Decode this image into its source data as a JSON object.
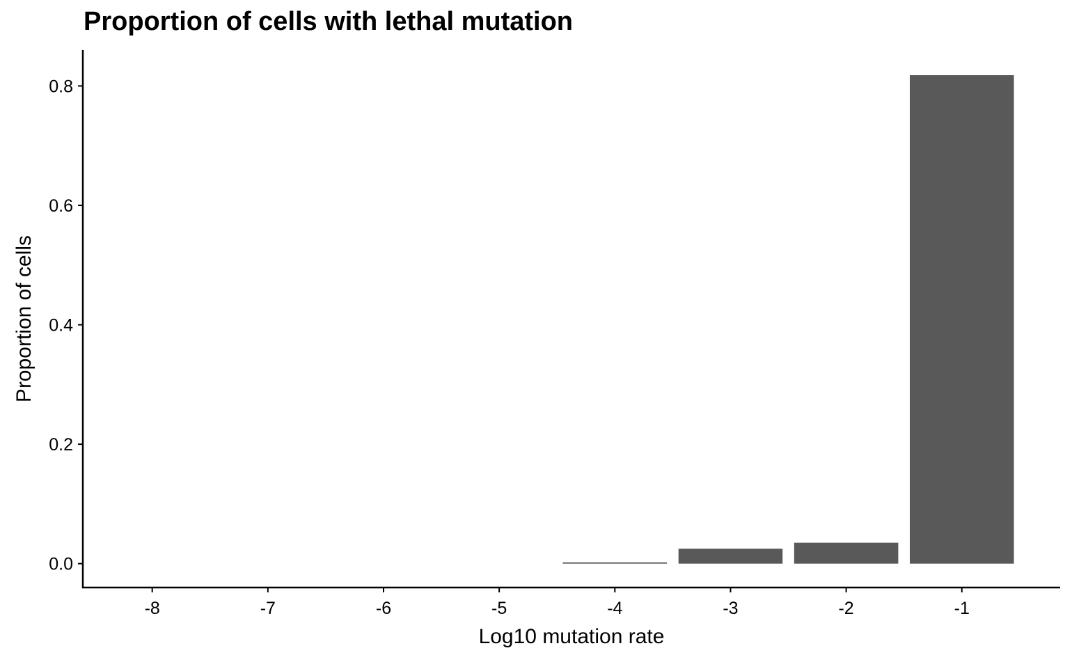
{
  "chart_data": {
    "type": "bar",
    "title": "Proportion of cells with lethal mutation",
    "xlabel": "Log10 mutation rate",
    "ylabel": "Proportion of cells",
    "x": [
      -8,
      -7,
      -6,
      -5,
      -4,
      -3,
      -2,
      -1
    ],
    "x_tick_labels": [
      "-8",
      "-7",
      "-6",
      "-5",
      "-4",
      "-3",
      "-2",
      "-1"
    ],
    "values": [
      0,
      0,
      0,
      0,
      0.002,
      0.025,
      0.035,
      0.818
    ],
    "ylim": [
      -0.04,
      0.86
    ],
    "y_ticks": [
      0.0,
      0.2,
      0.4,
      0.6,
      0.8
    ],
    "y_tick_labels": [
      "0.0",
      "0.2",
      "0.4",
      "0.6",
      "0.8"
    ],
    "bar_color": "#595959",
    "grid": false,
    "legend": "none"
  }
}
